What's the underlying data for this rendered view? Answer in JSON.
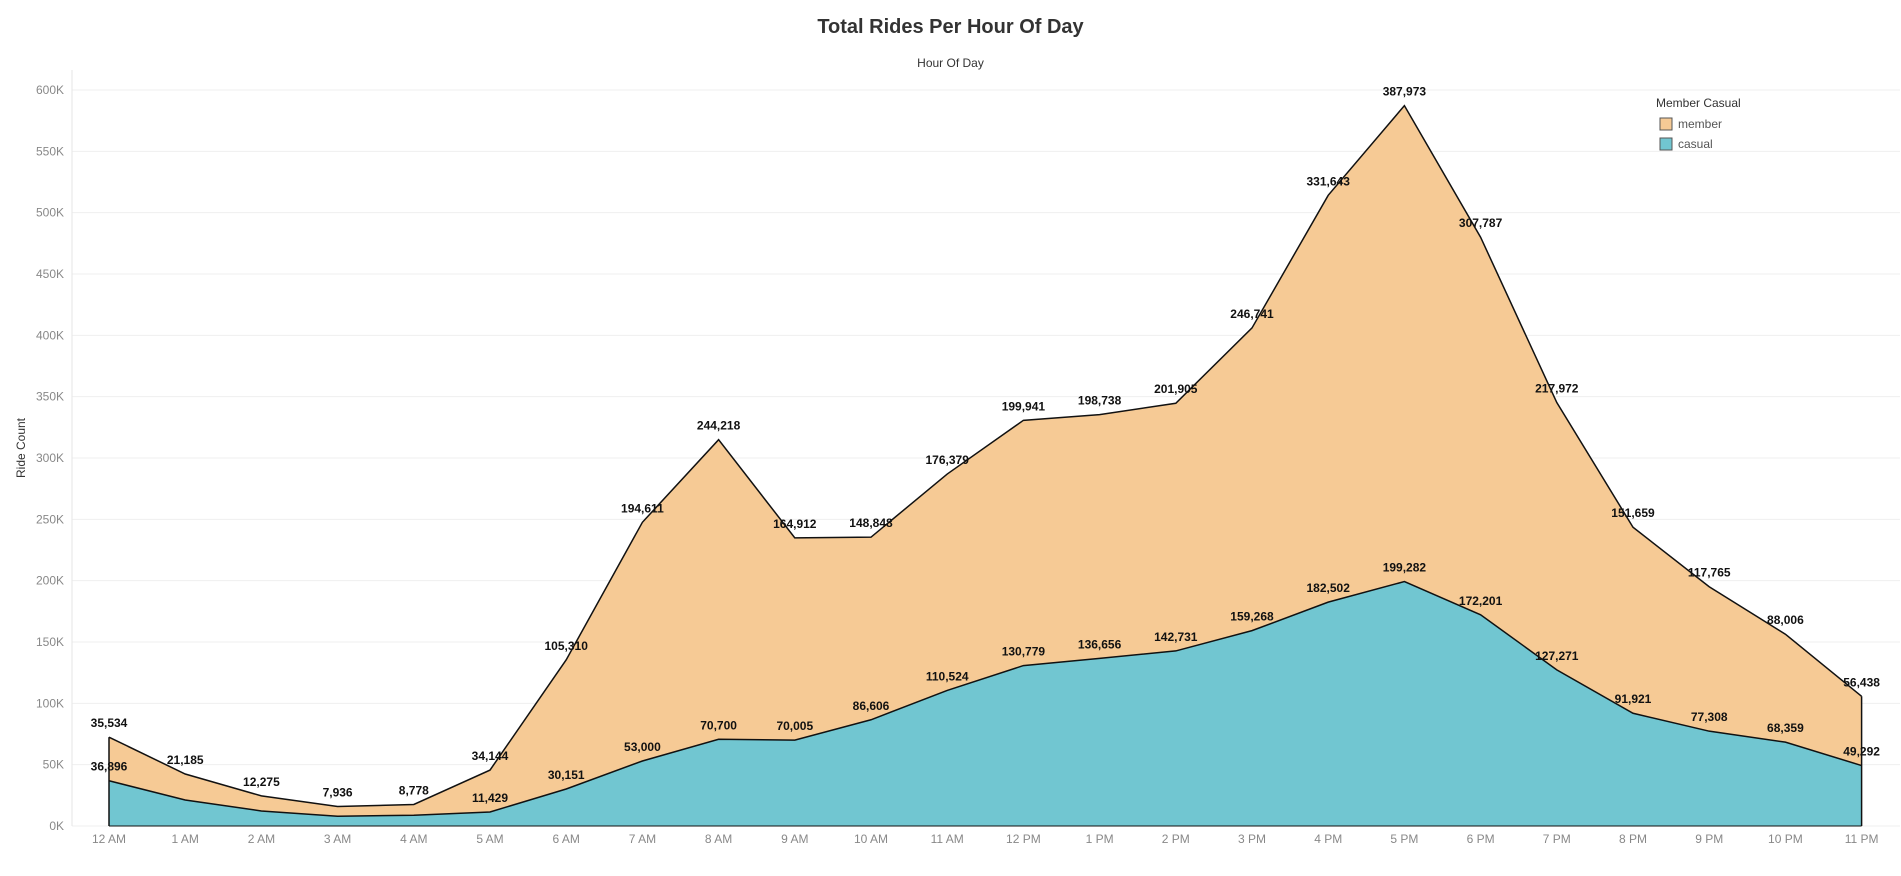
{
  "chart_data": {
    "type": "area",
    "stacked": true,
    "title": "Total Rides Per Hour Of Day",
    "xlabel": "Hour Of Day",
    "ylabel": "Ride Count",
    "ylim": [
      0,
      600000
    ],
    "yticks": [
      0,
      50000,
      100000,
      150000,
      200000,
      250000,
      300000,
      350000,
      400000,
      450000,
      500000,
      550000,
      600000
    ],
    "ytick_labels": [
      "0K",
      "50K",
      "100K",
      "150K",
      "200K",
      "250K",
      "300K",
      "350K",
      "400K",
      "450K",
      "500K",
      "550K",
      "600K"
    ],
    "grid": true,
    "legend_position": "top-right",
    "legend_title": "Member Casual",
    "categories": [
      "12 AM",
      "1 AM",
      "2 AM",
      "3 AM",
      "4 AM",
      "5 AM",
      "6 AM",
      "7 AM",
      "8 AM",
      "9 AM",
      "10 AM",
      "11 AM",
      "12 PM",
      "1 PM",
      "2 PM",
      "3 PM",
      "4 PM",
      "5 PM",
      "6 PM",
      "7 PM",
      "8 PM",
      "9 PM",
      "10 PM",
      "11 PM"
    ],
    "series": [
      {
        "name": "casual",
        "color": "#71C6D1",
        "values": [
          36896,
          21185,
          12275,
          7936,
          8778,
          11429,
          30151,
          53000,
          70700,
          70005,
          86606,
          110524,
          130779,
          136656,
          142731,
          159268,
          182502,
          199282,
          172201,
          127271,
          91921,
          77308,
          68359,
          49292
        ]
      },
      {
        "name": "member",
        "color": "#F6CA95",
        "values": [
          35534,
          21185,
          12275,
          7936,
          8778,
          34144,
          105310,
          194611,
          244218,
          164912,
          148848,
          176379,
          199941,
          198738,
          201905,
          246741,
          331643,
          387973,
          307787,
          217972,
          151659,
          117765,
          88006,
          56438
        ]
      }
    ],
    "member_labels": [
      "35,534",
      "21,185",
      "12,275",
      "7,936",
      "8,778",
      "34,144",
      "105,310",
      "194,611",
      "244,218",
      "164,912",
      "148,848",
      "176,379",
      "199,941",
      "198,738",
      "201,905",
      "246,741",
      "331,643",
      "387,973",
      "307,787",
      "217,972",
      "151,659",
      "117,765",
      "88,006",
      "56,438"
    ],
    "casual_labels": [
      "36,896",
      "",
      "",
      "",
      "",
      "11,429",
      "30,151",
      "53,000",
      "70,700",
      "70,005",
      "86,606",
      "110,524",
      "130,779",
      "136,656",
      "142,731",
      "159,268",
      "182,502",
      "199,282",
      "172,201",
      "127,271",
      "91,921",
      "77,308",
      "68,359",
      "49,292"
    ]
  },
  "legend": {
    "title": "Member Casual",
    "items": [
      {
        "label": "member",
        "color": "#F6CA95"
      },
      {
        "label": "casual",
        "color": "#71C6D1"
      }
    ]
  }
}
